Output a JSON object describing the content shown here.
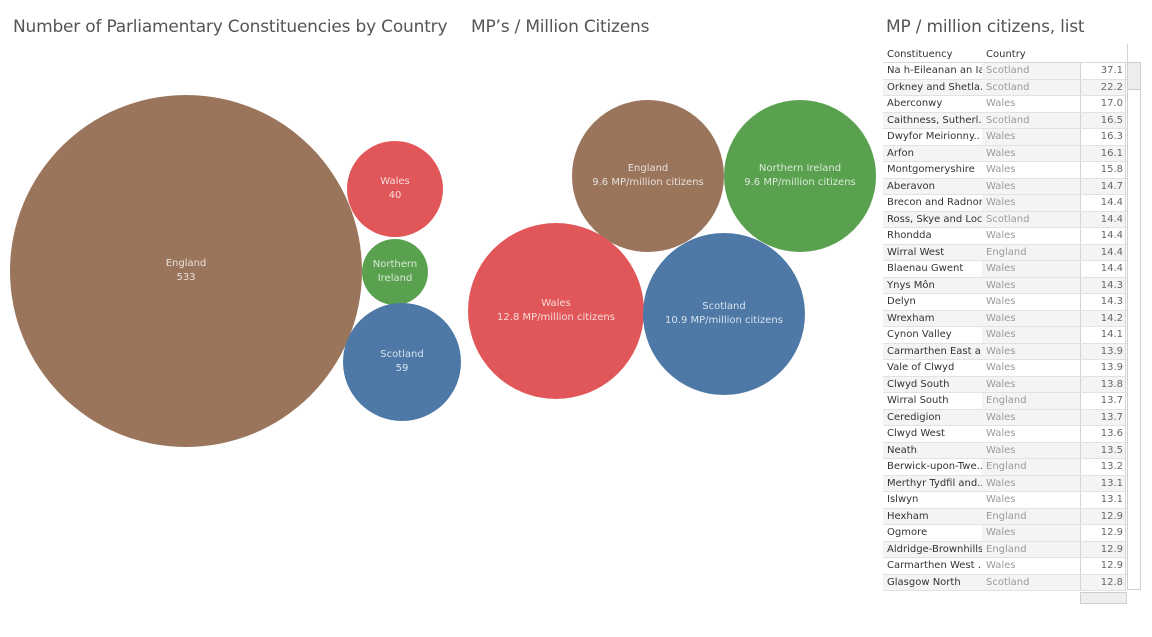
{
  "titles": {
    "chart1": "Number of Parliamentary Constituencies by Country",
    "chart2": "MP’s / Million Citizens",
    "table": "MP / million citizens, list"
  },
  "colors": {
    "England": "#9a755c",
    "Wales": "#e15759",
    "Northern Ireland": "#59a14f",
    "Scotland": "#4e79a7"
  },
  "chart_data": [
    {
      "type": "bubble",
      "title": "Number of Parliamentary Constituencies by Country",
      "categories": [
        "England",
        "Wales",
        "Northern Ireland",
        "Scotland"
      ],
      "values": [
        533,
        40,
        18,
        59
      ],
      "labels": [
        {
          "line1": "England",
          "line2": "533"
        },
        {
          "line1": "Wales",
          "line2": "40"
        },
        {
          "line1": "Northern",
          "line2": "Ireland"
        },
        {
          "line1": "Scotland",
          "line2": "59"
        }
      ]
    },
    {
      "type": "bubble",
      "title": "MP’s / Million Citizens",
      "categories": [
        "England",
        "Northern Ireland",
        "Wales",
        "Scotland"
      ],
      "values": [
        9.6,
        9.6,
        12.8,
        10.9
      ],
      "unit": "MP/million citizens",
      "labels": [
        {
          "line1": "England",
          "line2": "9.6 MP/million citizens"
        },
        {
          "line1": "Northern Ireland",
          "line2": "9.6 MP/million citizens"
        },
        {
          "line1": "Wales",
          "line2": "12.8 MP/million citizens"
        },
        {
          "line1": "Scotland",
          "line2": "10.9 MP/million citizens"
        }
      ]
    },
    {
      "type": "table",
      "title": "MP / million citizens, list",
      "columns": [
        "Constituency",
        "Country",
        ""
      ],
      "rows": [
        [
          "Na h-Eileanan an Iar",
          "Scotland",
          "37.1"
        ],
        [
          "Orkney and Shetla..",
          "Scotland",
          "22.2"
        ],
        [
          "Aberconwy",
          "Wales",
          "17.0"
        ],
        [
          "Caithness, Sutherl..",
          "Scotland",
          "16.5"
        ],
        [
          "Dwyfor Meirionny..",
          "Wales",
          "16.3"
        ],
        [
          "Arfon",
          "Wales",
          "16.1"
        ],
        [
          "Montgomeryshire",
          "Wales",
          "15.8"
        ],
        [
          "Aberavon",
          "Wales",
          "14.7"
        ],
        [
          "Brecon and Radnor..",
          "Wales",
          "14.4"
        ],
        [
          "Ross, Skye and Loc..",
          "Scotland",
          "14.4"
        ],
        [
          "Rhondda",
          "Wales",
          "14.4"
        ],
        [
          "Wirral West",
          "England",
          "14.4"
        ],
        [
          "Blaenau Gwent",
          "Wales",
          "14.4"
        ],
        [
          "Ynys Môn",
          "Wales",
          "14.3"
        ],
        [
          "Delyn",
          "Wales",
          "14.3"
        ],
        [
          "Wrexham",
          "Wales",
          "14.2"
        ],
        [
          "Cynon Valley",
          "Wales",
          "14.1"
        ],
        [
          "Carmarthen East a..",
          "Wales",
          "13.9"
        ],
        [
          "Vale of Clwyd",
          "Wales",
          "13.9"
        ],
        [
          "Clwyd South",
          "Wales",
          "13.8"
        ],
        [
          "Wirral South",
          "England",
          "13.7"
        ],
        [
          "Ceredigion",
          "Wales",
          "13.7"
        ],
        [
          "Clwyd West",
          "Wales",
          "13.6"
        ],
        [
          "Neath",
          "Wales",
          "13.5"
        ],
        [
          "Berwick-upon-Twe..",
          "England",
          "13.2"
        ],
        [
          "Merthyr Tydfil and..",
          "Wales",
          "13.1"
        ],
        [
          "Islwyn",
          "Wales",
          "13.1"
        ],
        [
          "Hexham",
          "England",
          "12.9"
        ],
        [
          "Ogmore",
          "Wales",
          "12.9"
        ],
        [
          "Aldridge-Brownhills",
          "England",
          "12.9"
        ],
        [
          "Carmarthen West ..",
          "Wales",
          "12.9"
        ],
        [
          "Glasgow North",
          "Scotland",
          "12.8"
        ]
      ]
    }
  ],
  "table": {
    "headers": {
      "constituency": "Constituency",
      "country": "Country"
    }
  }
}
